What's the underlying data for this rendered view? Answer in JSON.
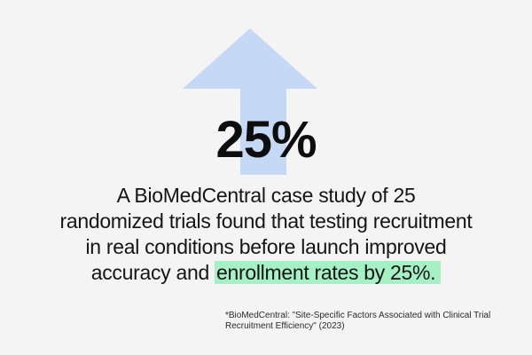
{
  "graphic": {
    "icon": "arrow-up-icon",
    "arrow_color": "#c5d8f5",
    "background_color": "#f4f4f4",
    "highlight_color": "#a6f0c6"
  },
  "stat": {
    "value": "25%"
  },
  "description": {
    "line_1": "A BioMedCentral case study of 25",
    "line_2": "randomized trials found that testing recruitment",
    "line_3": "in real conditions before launch improved",
    "line_4_plain": "accuracy and ",
    "line_4_highlight": "enrollment rates by 25%."
  },
  "footnote": {
    "line_1": "*BioMedCentral: \"Site-Specific Factors Associated with Clinical Trial",
    "line_2": "Recruitment Efficiency\" (2023)"
  }
}
